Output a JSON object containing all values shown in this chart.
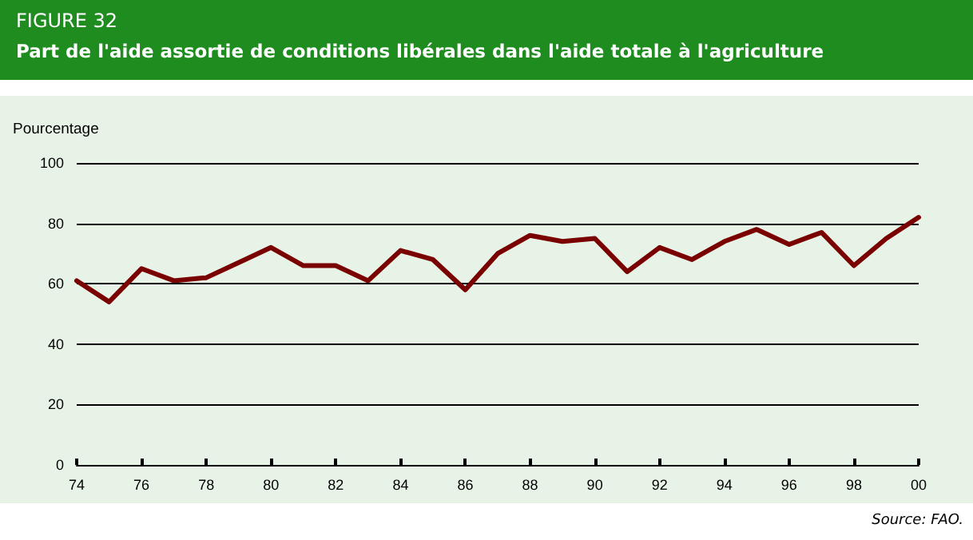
{
  "chart_data": {
    "type": "line",
    "title": "FIGURE 32",
    "subtitle": "Part de l'aide assortie de conditions libérales dans l'aide totale à l'agriculture",
    "ylabel": "Pourcentage",
    "categories": [
      "74",
      null,
      "76",
      null,
      "78",
      null,
      "80",
      null,
      "82",
      null,
      "84",
      null,
      "86",
      null,
      "88",
      null,
      "90",
      null,
      "92",
      null,
      "94",
      null,
      "96",
      null,
      "98",
      null,
      "00"
    ],
    "series": [
      {
        "color": "#7a0000",
        "values": [
          61,
          54,
          65,
          61,
          62,
          67,
          72,
          66,
          66,
          61,
          71,
          68,
          58,
          70,
          76,
          74,
          75,
          64,
          72,
          68,
          74,
          78,
          73,
          77,
          66,
          75,
          82
        ]
      }
    ],
    "ylim": [
      0,
      100
    ],
    "yticks": [
      0,
      20,
      40,
      60,
      80,
      100
    ],
    "grid": "y",
    "marker": "none",
    "line_style": "solid",
    "annotations": [
      "Source: FAO."
    ]
  }
}
